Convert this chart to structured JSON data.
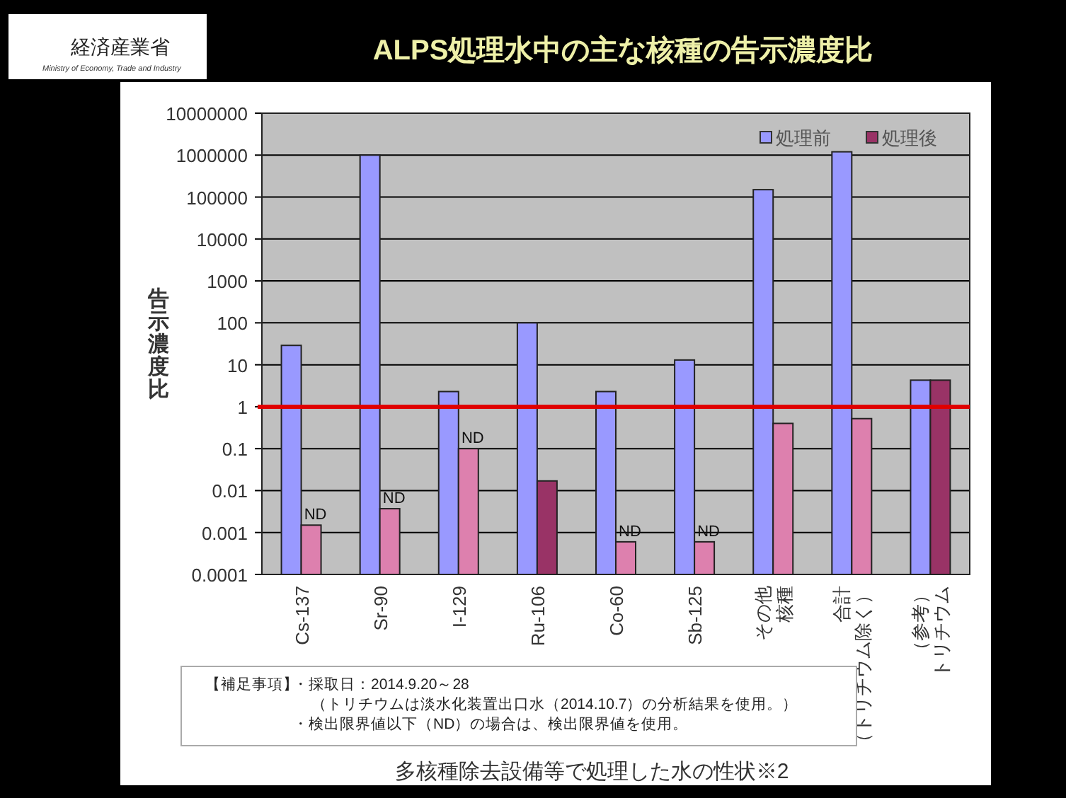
{
  "chart_data": {
    "type": "bar",
    "title": "ALPS処理水中の主な核種の告示濃度比",
    "ylabel": "告示濃度比",
    "categories": [
      "Cs-137",
      "Sr-90",
      "I-129",
      "Ru-106",
      "Co-60",
      "Sb-125",
      "その他核種",
      "合計（トリチウム除く）",
      "（参考）トリチウム"
    ],
    "series": [
      {
        "name": "処理前",
        "color": "#9999ff",
        "values": [
          29,
          1000000,
          2.3,
          100,
          2.3,
          13,
          150000,
          1200000,
          4.3
        ]
      },
      {
        "name": "処理後",
        "color": "#993366",
        "colors": [
          "#dd80ae",
          "#dd80ae",
          "#dd80ae",
          "#993366",
          "#dd80ae",
          "#dd80ae",
          "#dd80ae",
          "#dd80ae",
          "#993366"
        ],
        "values": [
          0.0015,
          0.0037,
          0.1,
          0.017,
          0.0006,
          0.0006,
          0.4,
          0.52,
          4.3
        ],
        "value_labels": [
          "ND",
          "ND",
          "ND",
          null,
          "ND",
          "ND",
          null,
          null,
          null
        ]
      }
    ],
    "log": "y",
    "ylim": [
      0.0001,
      10000000
    ],
    "yticks": [
      0.0001,
      0.001,
      0.01,
      0.1,
      1,
      10,
      100,
      1000,
      10000,
      100000,
      1000000,
      10000000
    ],
    "grid": "y",
    "legend": "top right",
    "ref_lines": [
      {
        "axis": "y",
        "value": 1,
        "color": "#e00000"
      }
    ],
    "annotations": [
      "経済産業省",
      "Ministry of Economy, Trade and Industry",
      "【補足事項】",
      "・採取日：2014.9.20～28",
      "（トリチウムは淡水化装置出口水（2014.10.7）の分析結果を使用。）",
      "・検出限界値以下（ND）の場合は、検出限界値を使用。",
      "多核種除去設備等で処理した水の性状※2"
    ]
  }
}
